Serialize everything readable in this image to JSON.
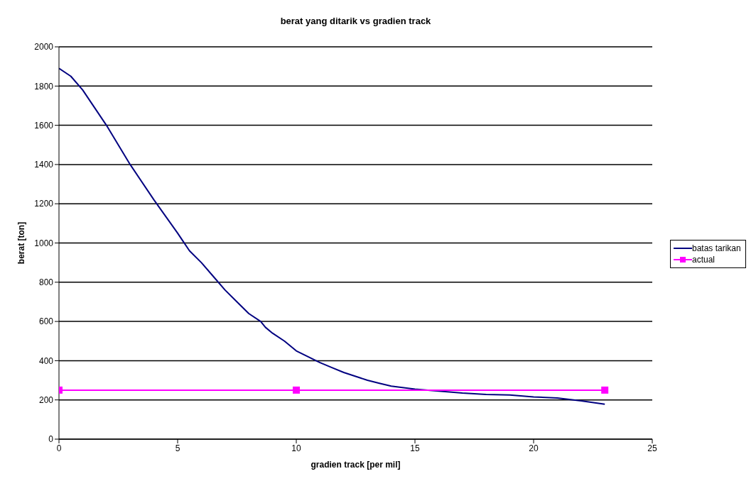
{
  "chart_data": {
    "type": "line",
    "title": "berat yang ditarik vs gradien track",
    "xlabel": "gradien track [per mil]",
    "ylabel": "berat [ton]",
    "series": [
      {
        "name": "batas tarikan",
        "color": "#000080",
        "marker": "none",
        "x": [
          0,
          0.5,
          1,
          2,
          3,
          4,
          5,
          5.5,
          6,
          6.5,
          7,
          7.5,
          8,
          8.5,
          8.7,
          9,
          9.5,
          10,
          10.5,
          11,
          11.5,
          12,
          12.5,
          13,
          13.5,
          14,
          15,
          16,
          17,
          18,
          19,
          20,
          21,
          22,
          23
        ],
        "values": [
          1890,
          1850,
          1780,
          1600,
          1400,
          1220,
          1050,
          960,
          900,
          830,
          760,
          700,
          640,
          600,
          570,
          540,
          500,
          450,
          420,
          390,
          365,
          340,
          320,
          300,
          285,
          270,
          255,
          245,
          235,
          228,
          225,
          215,
          210,
          195,
          178
        ]
      },
      {
        "name": "actual",
        "color": "#ff00ff",
        "marker": "square",
        "x": [
          0,
          10,
          23
        ],
        "values": [
          250,
          250,
          250
        ]
      }
    ],
    "xlim": [
      0,
      25
    ],
    "xticks": [
      0,
      5,
      10,
      15,
      20,
      25
    ],
    "ylim": [
      0,
      2000
    ],
    "yticks": [
      0,
      200,
      400,
      600,
      800,
      1000,
      1200,
      1400,
      1600,
      1800,
      2000
    ],
    "grid": "y",
    "legend": "right"
  }
}
